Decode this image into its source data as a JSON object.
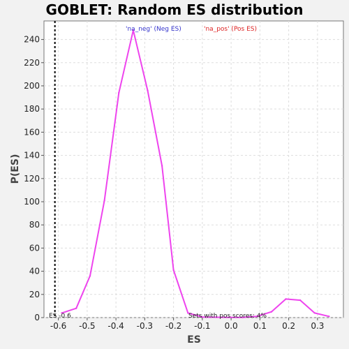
{
  "chart_data": {
    "type": "line",
    "title": "GOBLET: Random ES distribution",
    "xlabel": "ES",
    "ylabel": "P(ES)",
    "xlim": [
      -0.65,
      0.39
    ],
    "ylim": [
      0,
      256
    ],
    "x_ticks": [
      -0.6,
      -0.5,
      -0.4,
      -0.3,
      -0.2,
      -0.1,
      0.0,
      0.1,
      0.2,
      0.3
    ],
    "x_tick_labels": [
      "-0.6",
      "-0.5",
      "-0.4",
      "-0.3",
      "-0.2",
      "-0.1",
      "0.0",
      "0.1",
      "0.2",
      "0.3"
    ],
    "y_ticks": [
      0,
      20,
      40,
      60,
      80,
      100,
      120,
      140,
      160,
      180,
      200,
      220,
      240
    ],
    "y_tick_labels": [
      "0",
      "20",
      "40",
      "60",
      "80",
      "100",
      "120",
      "140",
      "160",
      "180",
      "200",
      "220",
      "240"
    ],
    "grid": true,
    "series": [
      {
        "color": "#ee44ee",
        "x": [
          -0.588,
          -0.538,
          -0.49,
          -0.44,
          -0.39,
          -0.34,
          -0.29,
          -0.24,
          -0.2,
          -0.15,
          -0.1,
          -0.05,
          0.0,
          0.04,
          0.09,
          0.14,
          0.19,
          0.24,
          0.29,
          0.34
        ],
        "y": [
          4,
          8,
          36,
          101,
          194,
          248,
          196,
          131,
          41,
          4,
          0.5,
          0.3,
          0.2,
          0.2,
          1,
          5,
          16,
          15,
          4,
          1
        ]
      }
    ],
    "legend": {
      "placement": "top",
      "entries": [
        {
          "label": "'na_neg' (Neg ES)",
          "color": "#3333cc"
        },
        {
          "label": "'na_pos' (Pos ES)",
          "color": "#dd2222"
        }
      ]
    },
    "reference_line": {
      "x": -0.612,
      "style": "dashed",
      "color": "#000000"
    },
    "annotations": [
      {
        "id": "es-value",
        "text": "ES -0.6"
      },
      {
        "id": "pos-sets",
        "text": "Sets with pos scores: 4%"
      }
    ]
  }
}
